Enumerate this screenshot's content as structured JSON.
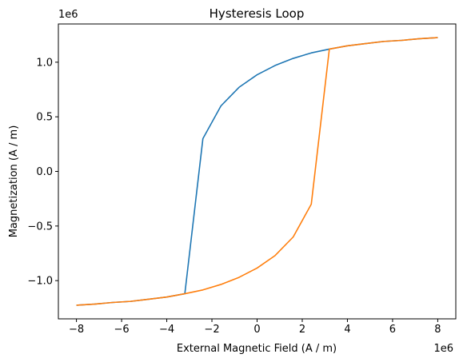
{
  "chart_data": {
    "type": "line",
    "title": "Hysteresis Loop",
    "xlabel": "External Magnetic Field (A / m)",
    "ylabel": "Magnetization (A / m)",
    "x_offset_label": "1e6",
    "y_offset_label": "1e6",
    "xlim": [
      -8.8,
      8.8
    ],
    "ylim": [
      -1.35,
      1.35
    ],
    "x_scale_factor": 1000000,
    "y_scale_factor": 1000000,
    "xticks": [
      -8,
      -6,
      -4,
      -2,
      0,
      2,
      4,
      6,
      8
    ],
    "xtick_labels": [
      "−8",
      "−6",
      "−4",
      "−2",
      "0",
      "2",
      "4",
      "6",
      "8"
    ],
    "yticks": [
      -1.0,
      -0.5,
      0.0,
      0.5,
      1.0
    ],
    "ytick_labels": [
      "−1.0",
      "−0.5",
      "0.0",
      "0.5",
      "1.0"
    ],
    "grid": false,
    "series": [
      {
        "color": "#1f77b4",
        "x": [
          -8,
          -7.2,
          -6.4,
          -5.6,
          -4.8,
          -4.0,
          -3.2,
          -2.4,
          -1.6,
          -0.8,
          0,
          0.8,
          1.6,
          2.4,
          3.2,
          4.0,
          4.8,
          5.6,
          6.4,
          7.2,
          8
        ],
        "y": [
          -1.225,
          -1.215,
          -1.2,
          -1.19,
          -1.17,
          -1.15,
          -1.12,
          0.3,
          0.6,
          0.77,
          0.885,
          0.97,
          1.035,
          1.085,
          1.12,
          1.15,
          1.17,
          1.19,
          1.2,
          1.215,
          1.225
        ]
      },
      {
        "color": "#ff7f0e",
        "x": [
          8,
          7.2,
          6.4,
          5.6,
          4.8,
          4.0,
          3.2,
          2.4,
          1.6,
          0.8,
          0,
          -0.8,
          -1.6,
          -2.4,
          -3.2,
          -4.0,
          -4.8,
          -5.6,
          -6.4,
          -7.2,
          -8
        ],
        "y": [
          1.225,
          1.215,
          1.2,
          1.19,
          1.17,
          1.15,
          1.12,
          -0.3,
          -0.6,
          -0.77,
          -0.885,
          -0.97,
          -1.035,
          -1.085,
          -1.12,
          -1.15,
          -1.17,
          -1.19,
          -1.2,
          -1.215,
          -1.225
        ]
      }
    ]
  }
}
